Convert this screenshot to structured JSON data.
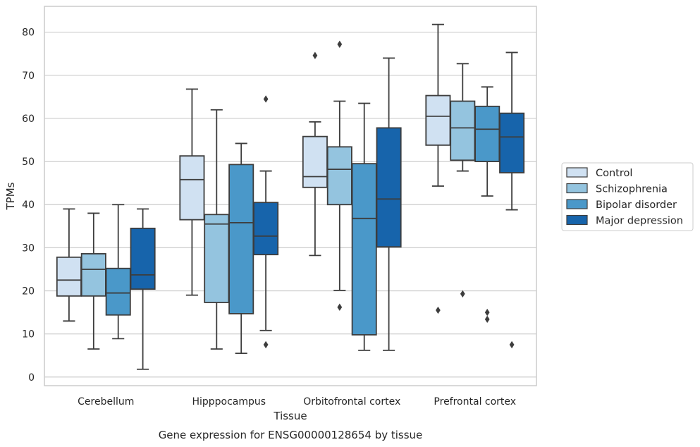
{
  "chart_data": {
    "type": "box",
    "title": "",
    "caption": "Gene expression for ENSG00000128654 by tissue",
    "xlabel": "Tissue",
    "ylabel": "TPMs",
    "ylim": [
      -2,
      86
    ],
    "yticks": [
      0,
      10,
      20,
      30,
      40,
      50,
      60,
      70,
      80
    ],
    "grid": "horizontal",
    "legend_position": "right",
    "categories": [
      "Cerebellum",
      "Hipppocampus",
      "Orbitofrontal cortex",
      "Prefrontal cortex"
    ],
    "series": [
      {
        "name": "Control",
        "color": "#d0e1f2",
        "boxes": [
          {
            "whisker_low": 13,
            "q1": 18.8,
            "median": 22.5,
            "q3": 27.8,
            "whisker_high": 39,
            "outliers": []
          },
          {
            "whisker_low": 19,
            "q1": 36.5,
            "median": 45.8,
            "q3": 51.3,
            "whisker_high": 66.8,
            "outliers": []
          },
          {
            "whisker_low": 28.2,
            "q1": 44,
            "median": 46.5,
            "q3": 55.8,
            "whisker_high": 59.2,
            "outliers": [
              74.6
            ]
          },
          {
            "whisker_low": 44.3,
            "q1": 53.8,
            "median": 60.5,
            "q3": 65.3,
            "whisker_high": 81.8,
            "outliers": [
              15.5
            ]
          }
        ]
      },
      {
        "name": "Schizophrenia",
        "color": "#94c4df",
        "boxes": [
          {
            "whisker_low": 6.5,
            "q1": 18.8,
            "median": 25,
            "q3": 28.6,
            "whisker_high": 38,
            "outliers": []
          },
          {
            "whisker_low": 6.5,
            "q1": 17.3,
            "median": 35.5,
            "q3": 37.7,
            "whisker_high": 62,
            "outliers": []
          },
          {
            "whisker_low": 20.1,
            "q1": 40,
            "median": 48.2,
            "q3": 53.4,
            "whisker_high": 64,
            "outliers": [
              77.2,
              16.2
            ]
          },
          {
            "whisker_low": 47.8,
            "q1": 50.3,
            "median": 57.8,
            "q3": 64,
            "whisker_high": 72.7,
            "outliers": [
              19.3
            ]
          }
        ]
      },
      {
        "name": "Bipolar disorder",
        "color": "#4a98c9",
        "boxes": [
          {
            "whisker_low": 8.9,
            "q1": 14.4,
            "median": 19.5,
            "q3": 25.2,
            "whisker_high": 40,
            "outliers": []
          },
          {
            "whisker_low": 5.5,
            "q1": 14.7,
            "median": 35.8,
            "q3": 49.3,
            "whisker_high": 54.2,
            "outliers": []
          },
          {
            "whisker_low": 6.2,
            "q1": 9.8,
            "median": 36.8,
            "q3": 49.5,
            "whisker_high": 63.5,
            "outliers": []
          },
          {
            "whisker_low": 42,
            "q1": 50,
            "median": 57.5,
            "q3": 62.8,
            "whisker_high": 67.3,
            "outliers": [
              15,
              13.4
            ]
          }
        ]
      },
      {
        "name": "Major depression",
        "color": "#1764ab",
        "boxes": [
          {
            "whisker_low": 1.8,
            "q1": 20.4,
            "median": 23.7,
            "q3": 34.5,
            "whisker_high": 39,
            "outliers": []
          },
          {
            "whisker_low": 10.8,
            "q1": 28.4,
            "median": 32.7,
            "q3": 40.5,
            "whisker_high": 47.8,
            "outliers": [
              64.5,
              7.5
            ]
          },
          {
            "whisker_low": 6.2,
            "q1": 30.2,
            "median": 41.3,
            "q3": 57.8,
            "whisker_high": 74,
            "outliers": []
          },
          {
            "whisker_low": 38.8,
            "q1": 47.4,
            "median": 55.7,
            "q3": 61.2,
            "whisker_high": 75.3,
            "outliers": [
              7.5
            ]
          }
        ]
      }
    ]
  }
}
